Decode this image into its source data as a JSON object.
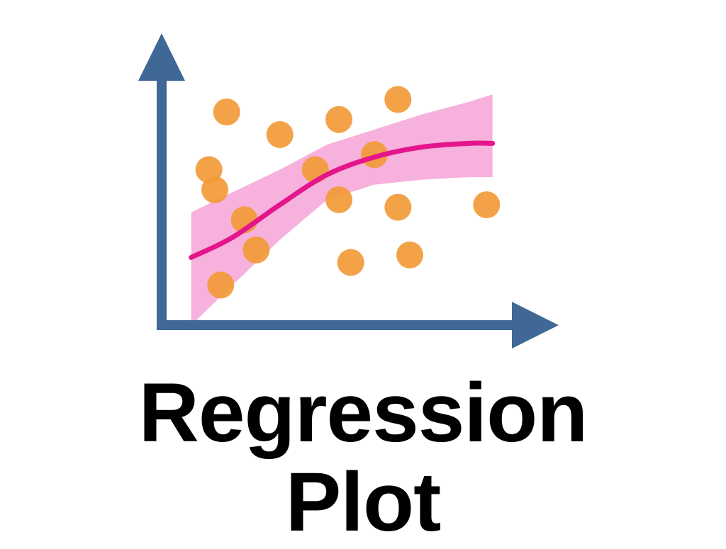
{
  "colors": {
    "axis": "#3f6896",
    "point": "#f29a38",
    "band": "#f6b2dc",
    "line": "#e5158c",
    "text": "#000000"
  },
  "icon": "regression-plot-icon",
  "chart_data": {
    "type": "scatter",
    "description_free": true,
    "grid": false,
    "points": [
      {
        "x": 0.8,
        "y": 6.2
      },
      {
        "x": 0.9,
        "y": 5.4
      },
      {
        "x": 1.0,
        "y": 1.6
      },
      {
        "x": 1.1,
        "y": 8.5
      },
      {
        "x": 1.4,
        "y": 4.2
      },
      {
        "x": 1.6,
        "y": 3.0
      },
      {
        "x": 2.0,
        "y": 7.6
      },
      {
        "x": 2.6,
        "y": 6.2
      },
      {
        "x": 3.0,
        "y": 8.2
      },
      {
        "x": 3.0,
        "y": 5.0
      },
      {
        "x": 3.2,
        "y": 2.5
      },
      {
        "x": 3.6,
        "y": 6.8
      },
      {
        "x": 4.0,
        "y": 9.0
      },
      {
        "x": 4.0,
        "y": 4.7
      },
      {
        "x": 4.2,
        "y": 2.8
      },
      {
        "x": 5.5,
        "y": 4.8
      }
    ],
    "fit": {
      "x": [
        0.5,
        1.2,
        2.0,
        2.8,
        3.6,
        4.4,
        5.2,
        5.6
      ],
      "y": [
        2.7,
        3.5,
        4.8,
        6.0,
        6.7,
        7.1,
        7.25,
        7.25
      ],
      "lower": [
        0.0,
        1.6,
        3.4,
        5.0,
        5.6,
        5.8,
        5.9,
        5.9
      ],
      "upper": [
        4.5,
        5.3,
        6.2,
        7.2,
        7.8,
        8.4,
        8.9,
        9.2
      ]
    },
    "xlim": [
      0,
      6.0
    ],
    "ylim": [
      0,
      10.0
    ]
  },
  "caption": {
    "line1": "Regression",
    "line2": "Plot"
  }
}
